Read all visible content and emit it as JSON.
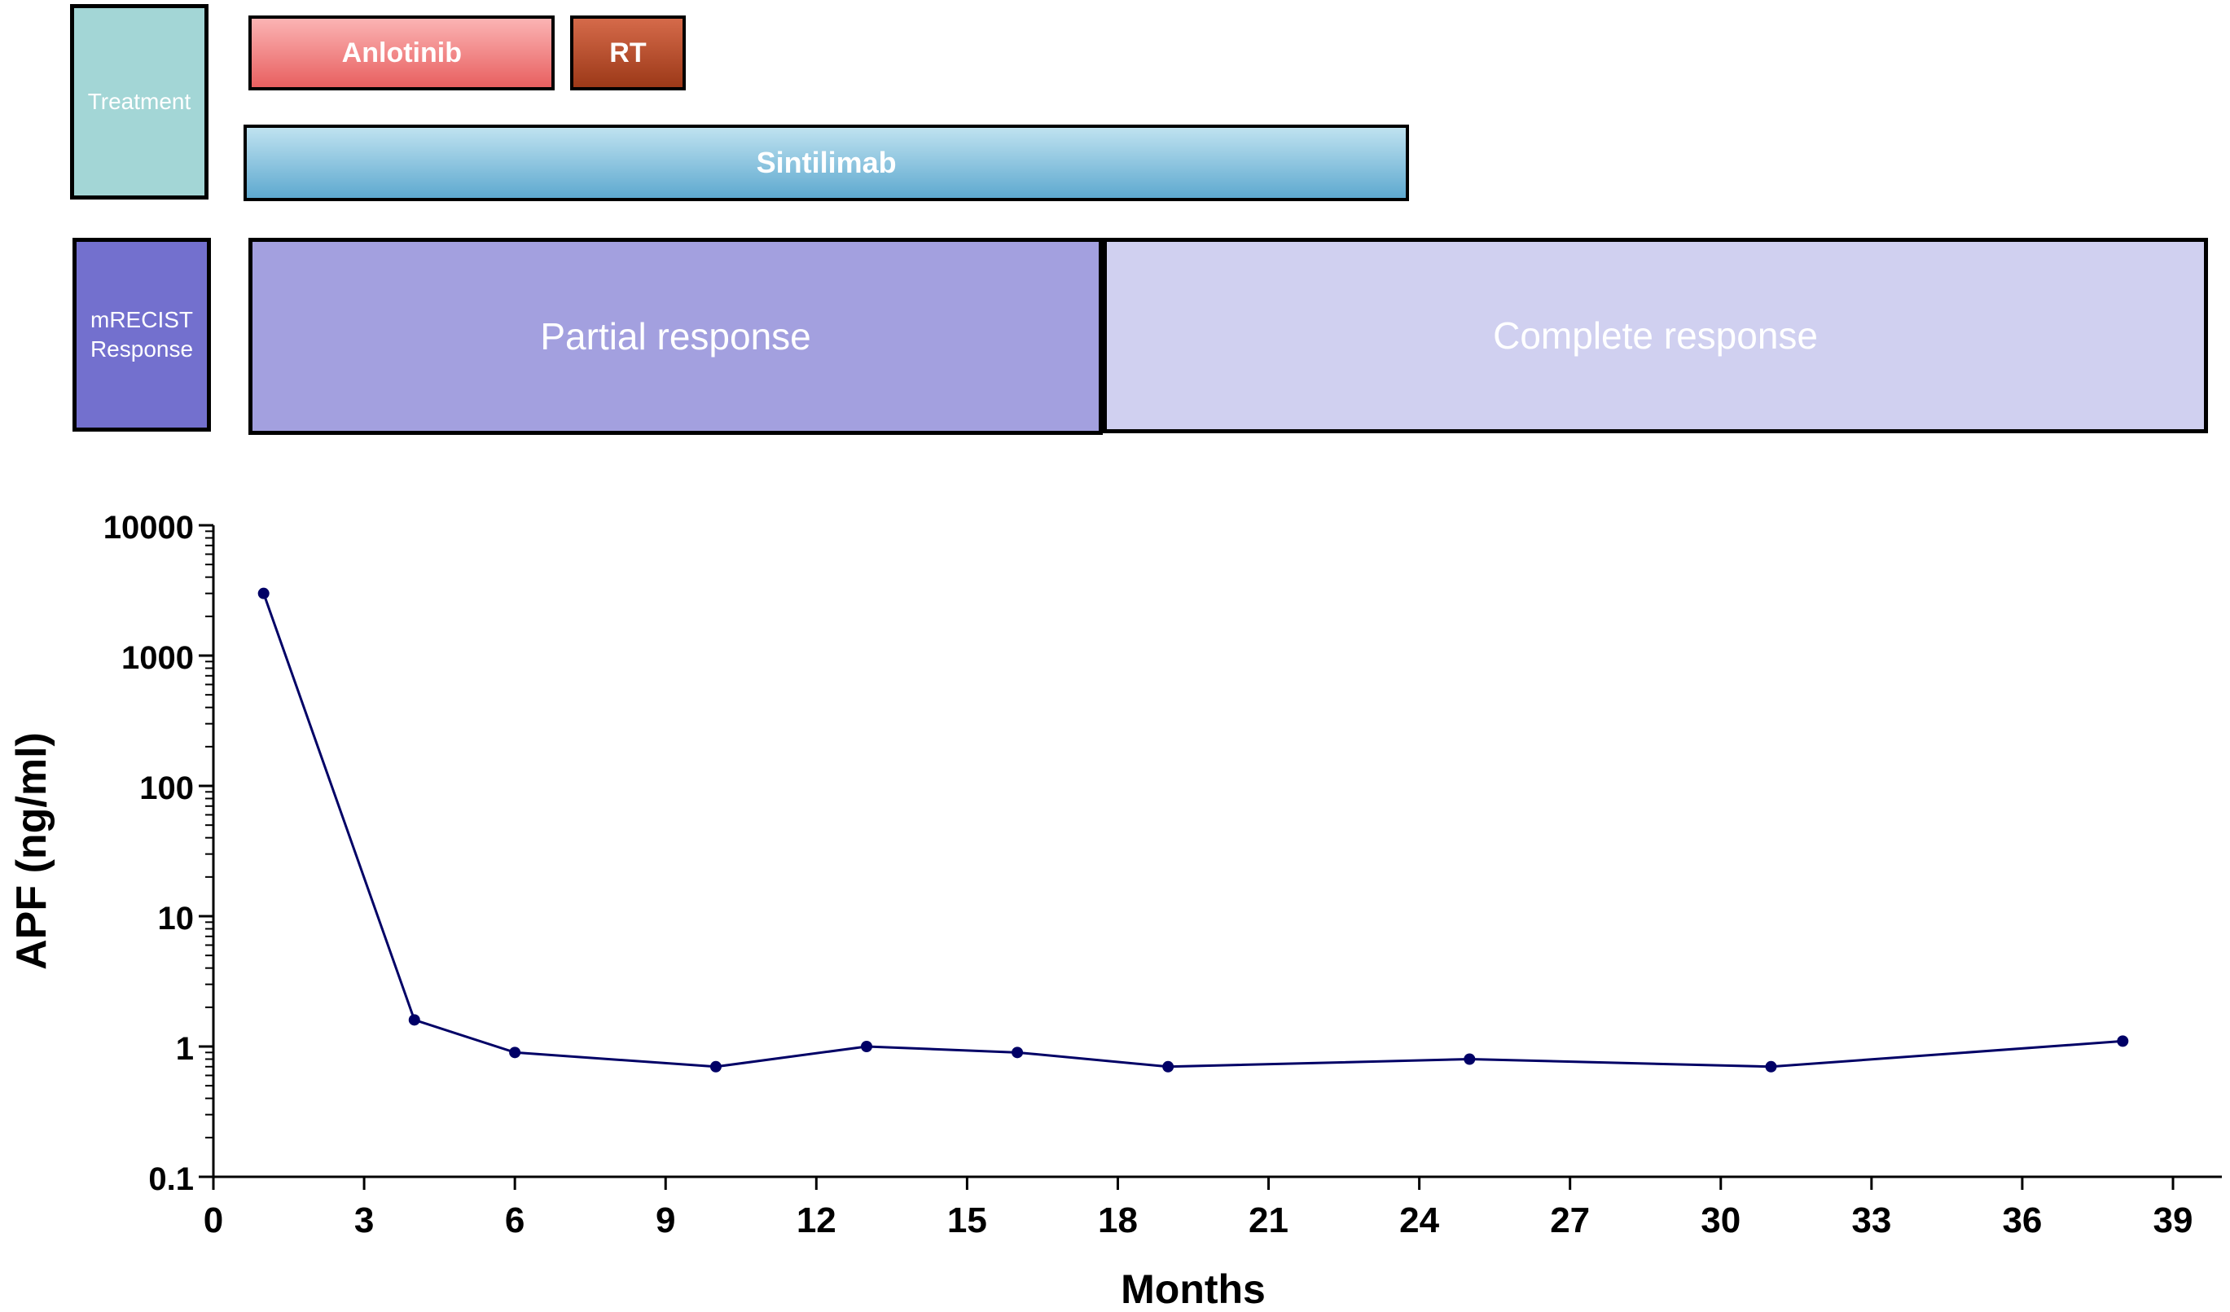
{
  "lanes": {
    "treatment_label": "Treatment",
    "response_label": "mRECIST\nResponse",
    "label_colors": {
      "treatment": "#a3d6d6",
      "response": "#7370ce"
    }
  },
  "treatments": [
    {
      "label": "Anlotinib",
      "start_month": 0.7,
      "end_month": 6.8,
      "color": "#f08a8a"
    },
    {
      "label": "RT",
      "start_month": 7.1,
      "end_month": 9.4,
      "color": "#b34d2c"
    },
    {
      "label": "Sintilimab",
      "start_month": 0.6,
      "end_month": 23.8,
      "color": "#8ec6e2"
    }
  ],
  "responses": [
    {
      "label": "Partial response",
      "start_month": 0.7,
      "end_month": 17.7,
      "color": "#a3a0df"
    },
    {
      "label": "Complete response",
      "start_month": 17.7,
      "end_month": 39.7,
      "color": "#d0d0f0"
    }
  ],
  "chart_data": {
    "type": "line",
    "xlabel": "Months",
    "ylabel": "APF (ng/ml)",
    "xlim": [
      0,
      40
    ],
    "ylim": [
      0.1,
      10000
    ],
    "yscale": "log",
    "x_ticks": [
      "0",
      "3",
      "6",
      "9",
      "12",
      "15",
      "18",
      "21",
      "24",
      "27",
      "30",
      "33",
      "36",
      "39"
    ],
    "y_ticks": [
      "0.1",
      "1",
      "10",
      "100",
      "1000",
      "10000"
    ],
    "grid": false,
    "series": [
      {
        "color": "#000066",
        "x": [
          1,
          4,
          6,
          10,
          13,
          16,
          19,
          25,
          31,
          38
        ],
        "y": [
          3000,
          1.6,
          0.9,
          0.7,
          1.0,
          0.9,
          0.7,
          0.8,
          0.7,
          1.1
        ]
      }
    ]
  }
}
